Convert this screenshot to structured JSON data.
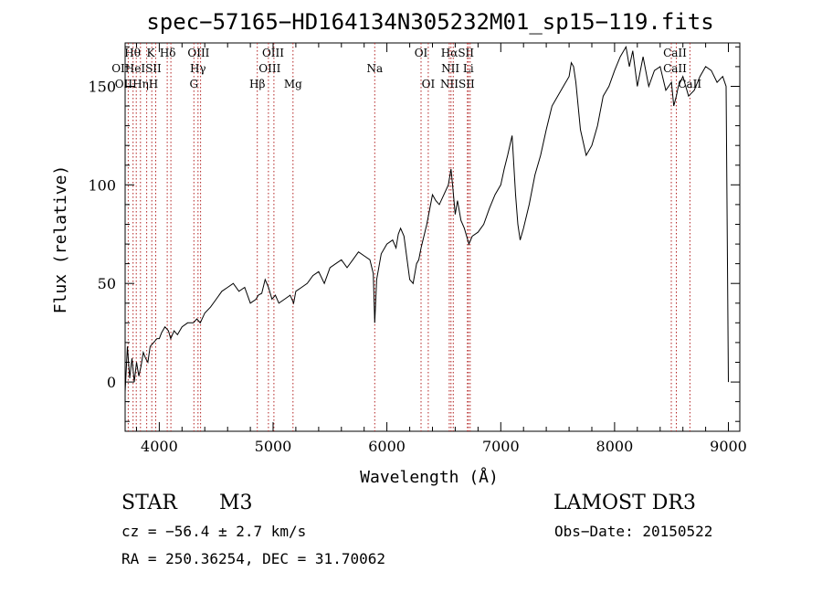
{
  "chart_data": {
    "type": "line",
    "title": "spec−57165−HD164134N305232M01_sp15−119.fits",
    "xlabel": "Wavelength (Å)",
    "ylabel": "Flux (relative)",
    "xlim": [
      3700,
      9100
    ],
    "ylim": [
      -25,
      172
    ],
    "x_ticks": [
      4000,
      5000,
      6000,
      7000,
      8000,
      9000
    ],
    "y_ticks": [
      0,
      50,
      100,
      150
    ],
    "grid": false,
    "line_color": "#000000",
    "marker_color": "#b22222",
    "series": [
      {
        "x": [
          3700,
          3720,
          3740,
          3760,
          3780,
          3800,
          3820,
          3840,
          3860,
          3880,
          3900,
          3920,
          3950,
          3980,
          4000,
          4020,
          4050,
          4080,
          4100,
          4130,
          4160,
          4200,
          4250,
          4300,
          4330,
          4360,
          4400,
          4450,
          4500,
          4550,
          4600,
          4650,
          4700,
          4750,
          4800,
          4850,
          4870,
          4900,
          4930,
          4960,
          4990,
          5020,
          5050,
          5100,
          5150,
          5180,
          5200,
          5250,
          5300,
          5350,
          5400,
          5450,
          5500,
          5550,
          5600,
          5650,
          5700,
          5750,
          5800,
          5850,
          5880,
          5893,
          5910,
          5950,
          6000,
          6050,
          6080,
          6100,
          6120,
          6150,
          6200,
          6230,
          6260,
          6280,
          6300,
          6350,
          6400,
          6430,
          6460,
          6500,
          6540,
          6563,
          6580,
          6600,
          6620,
          6650,
          6680,
          6700,
          6720,
          6750,
          6800,
          6850,
          6900,
          6950,
          7000,
          7030,
          7060,
          7100,
          7130,
          7150,
          7170,
          7200,
          7250,
          7300,
          7350,
          7400,
          7450,
          7500,
          7550,
          7600,
          7620,
          7640,
          7660,
          7680,
          7700,
          7750,
          7800,
          7850,
          7900,
          7950,
          8000,
          8050,
          8100,
          8130,
          8160,
          8200,
          8250,
          8300,
          8350,
          8400,
          8450,
          8500,
          8520,
          8542,
          8560,
          8600,
          8650,
          8700,
          8750,
          8800,
          8850,
          8900,
          8950,
          8980,
          9000
        ],
        "y": [
          -5,
          18,
          2,
          12,
          0,
          10,
          3,
          8,
          15,
          12,
          10,
          18,
          20,
          22,
          22,
          25,
          28,
          26,
          22,
          26,
          24,
          28,
          30,
          30,
          32,
          30,
          35,
          38,
          42,
          46,
          48,
          50,
          46,
          48,
          40,
          42,
          44,
          45,
          52,
          48,
          42,
          44,
          40,
          42,
          44,
          40,
          46,
          48,
          50,
          54,
          56,
          50,
          58,
          60,
          62,
          58,
          62,
          66,
          64,
          62,
          55,
          30,
          52,
          65,
          70,
          72,
          68,
          75,
          78,
          74,
          52,
          50,
          60,
          62,
          68,
          80,
          95,
          92,
          90,
          95,
          100,
          108,
          98,
          85,
          92,
          82,
          78,
          74,
          70,
          74,
          76,
          80,
          88,
          95,
          100,
          108,
          115,
          125,
          95,
          80,
          72,
          78,
          90,
          105,
          115,
          128,
          140,
          145,
          150,
          155,
          162,
          160,
          152,
          140,
          128,
          115,
          120,
          130,
          145,
          150,
          158,
          165,
          170,
          160,
          168,
          150,
          165,
          150,
          158,
          160,
          148,
          152,
          140,
          145,
          150,
          155,
          145,
          148,
          155,
          160,
          158,
          152,
          155,
          150,
          0
        ]
      }
    ],
    "lines": [
      {
        "wave": 3727,
        "top": [
          "OII"
        ],
        "bottom": [
          "OII"
        ]
      },
      {
        "wave": 3770,
        "top": [
          "Hθ"
        ],
        "bottom": [
          "OII"
        ]
      },
      {
        "wave": 3798,
        "top": [
          "HeI"
        ],
        "bottom": [
          ""
        ]
      },
      {
        "wave": 3835,
        "top": [
          "Hη"
        ],
        "bottom": [
          ""
        ]
      },
      {
        "wave": 3889,
        "top": [
          ""
        ],
        "bottom": [
          "SII"
        ]
      },
      {
        "wave": 3934,
        "top": [
          "K"
        ],
        "bottom": [
          "H"
        ]
      },
      {
        "wave": 3969,
        "top": [
          ""
        ],
        "bottom": [
          ""
        ]
      },
      {
        "wave": 4070,
        "top": [
          "SII"
        ],
        "bottom": [
          ""
        ]
      },
      {
        "wave": 4102,
        "top": [
          "Hδ"
        ],
        "bottom": [
          ""
        ]
      },
      {
        "wave": 4304,
        "top": [
          ""
        ],
        "bottom": [
          "G"
        ]
      },
      {
        "wave": 4340,
        "top": [
          "Hγ"
        ],
        "bottom": [
          ""
        ]
      },
      {
        "wave": 4363,
        "top": [
          "OIII"
        ],
        "bottom": [
          ""
        ]
      },
      {
        "wave": 4861,
        "top": [
          ""
        ],
        "bottom": [
          "Hβ"
        ]
      },
      {
        "wave": 4959,
        "top": [
          "OIII"
        ],
        "bottom": [
          ""
        ]
      },
      {
        "wave": 5007,
        "top": [
          "OIII"
        ],
        "bottom": [
          ""
        ]
      },
      {
        "wave": 5175,
        "top": [
          ""
        ],
        "bottom": [
          "Mg"
        ]
      },
      {
        "wave": 5893,
        "top": [
          "Na"
        ],
        "bottom": [
          ""
        ]
      },
      {
        "wave": 6300,
        "top": [
          "OI"
        ],
        "bottom": [
          ""
        ]
      },
      {
        "wave": 6363,
        "top": [
          ""
        ],
        "bottom": [
          "OI"
        ]
      },
      {
        "wave": 6548,
        "top": [
          "NII"
        ],
        "bottom": [
          "NII"
        ]
      },
      {
        "wave": 6563,
        "top": [
          "Hα"
        ],
        "bottom": [
          ""
        ]
      },
      {
        "wave": 6583,
        "top": [
          ""
        ],
        "bottom": [
          ""
        ]
      },
      {
        "wave": 6707,
        "top": [
          "Li"
        ],
        "bottom": [
          ""
        ]
      },
      {
        "wave": 6716,
        "top": [
          "SII"
        ],
        "bottom": [
          "SII"
        ]
      },
      {
        "wave": 6731,
        "top": [
          ""
        ],
        "bottom": [
          ""
        ]
      },
      {
        "wave": 8498,
        "top": [
          "CaII"
        ],
        "bottom": [
          ""
        ]
      },
      {
        "wave": 8542,
        "top": [
          "CaII"
        ],
        "bottom": [
          ""
        ]
      },
      {
        "wave": 8662,
        "top": [
          ""
        ],
        "bottom": [
          "CaII"
        ]
      }
    ],
    "line_label_rows": {
      "row1": [
        {
          "text": "Hθ",
          "wave": 3765
        },
        {
          "text": "K",
          "wave": 3925
        },
        {
          "text": "Hδ",
          "wave": 4075
        },
        {
          "text": "OIII",
          "wave": 4345
        },
        {
          "text": "OIII",
          "wave": 5000
        },
        {
          "text": "OI",
          "wave": 6300
        },
        {
          "text": "HαSII",
          "wave": 6620
        }
      ],
      "row2": [
        {
          "text": "OIHeISII",
          "wave": 3800
        },
        {
          "text": "Hγ",
          "wave": 4340
        },
        {
          "text": "OIII",
          "wave": 4970
        },
        {
          "text": "Na",
          "wave": 5893
        },
        {
          "text": "NII Li",
          "wave": 6620
        },
        {
          "text": "CaII",
          "wave": 8530
        }
      ],
      "row3": [
        {
          "text": "OIIHηH",
          "wave": 3800
        },
        {
          "text": "G",
          "wave": 4304
        },
        {
          "text": "Hβ",
          "wave": 4861
        },
        {
          "text": "Mg",
          "wave": 5175
        },
        {
          "text": "OI",
          "wave": 6363
        },
        {
          "text": "NIISII",
          "wave": 6620
        },
        {
          "text": "CaII",
          "wave": 8660
        }
      ],
      "row0": [
        {
          "text": "CaII",
          "wave": 8530
        }
      ]
    }
  },
  "info": {
    "class_label": "STAR",
    "subclass": "M3",
    "survey": "LAMOST DR3",
    "redshift": "cz = −56.4 ± 2.7 km/s",
    "obs_date": "Obs−Date: 20150522",
    "coords": "RA = 250.36254, DEC =  31.70062"
  }
}
